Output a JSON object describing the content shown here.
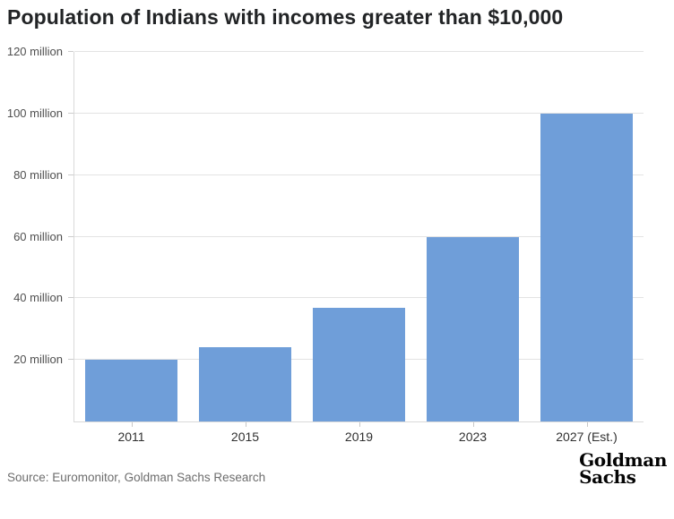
{
  "header": {
    "title": "Population of Indians with incomes greater than $10,000"
  },
  "chart_data": {
    "type": "bar",
    "title": "Population of Indians with incomes greater than $10,000",
    "categories": [
      "2011",
      "2015",
      "2019",
      "2023",
      "2027 (Est.)"
    ],
    "values": [
      20,
      24,
      37,
      60,
      100
    ],
    "unit": "million people",
    "xlabel": "",
    "ylabel": "",
    "ylim": [
      0,
      120
    ],
    "yticks": [
      {
        "value": 20,
        "label": "20 million"
      },
      {
        "value": 40,
        "label": "40 million"
      },
      {
        "value": 60,
        "label": "60 million"
      },
      {
        "value": 80,
        "label": "80 million"
      },
      {
        "value": 100,
        "label": "100 million"
      },
      {
        "value": 120,
        "label": "120 million"
      }
    ],
    "grid": true,
    "legend": "none",
    "bar_color": "#6f9ed9"
  },
  "footer": {
    "source": "Source: Euromonitor, Goldman Sachs Research",
    "logo_line1": "Goldman",
    "logo_line2": "Sachs"
  },
  "colors": {
    "bar": "#6f9ed9",
    "gridline": "#e3e3e3",
    "axis": "#d9d9d9",
    "title_text": "#222426",
    "ytick_text": "#4f4f4f",
    "xtick_text": "#303030",
    "source_text": "#6d6d6d",
    "logo_text": "#040404",
    "background": "#ffffff"
  }
}
